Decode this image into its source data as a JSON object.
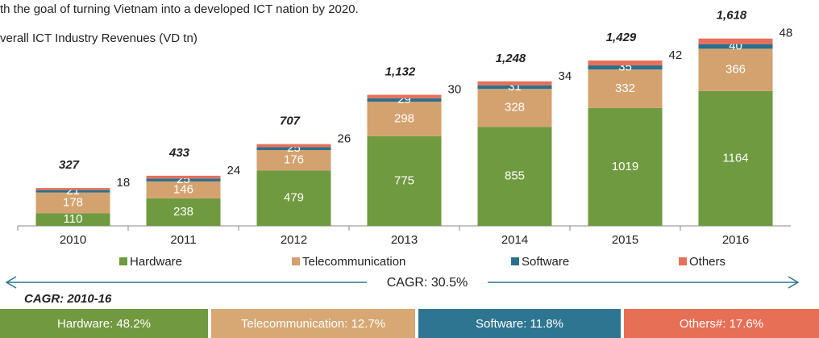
{
  "chart_data": {
    "type": "stacked_bar",
    "title": "th the goal of turning Vietnam into a developed ICT nation by 2020.",
    "subtitle": "verall ICT Industry Revenues (VD tn)",
    "categories": [
      "2010",
      "2011",
      "2012",
      "2013",
      "2014",
      "2015",
      "2016"
    ],
    "series": [
      {
        "name": "Hardware",
        "color": "#6f9a3f",
        "values": [
          110,
          238,
          479,
          775,
          855,
          1019,
          1164
        ]
      },
      {
        "name": "Telecommunication",
        "color": "#d4a26f",
        "values": [
          178,
          146,
          176,
          298,
          328,
          332,
          366
        ]
      },
      {
        "name": "Software",
        "color": "#2a6f8c",
        "values": [
          21,
          25,
          25,
          29,
          31,
          35,
          40
        ]
      },
      {
        "name": "Others",
        "color": "#e6705a",
        "values": [
          18,
          24,
          26,
          30,
          34,
          42,
          48
        ]
      }
    ],
    "totals": [
      "327",
      "433",
      "707",
      "1,132",
      "1,248",
      "1,429",
      "1,618"
    ],
    "ylim": [
      0,
      1700
    ],
    "cagr_overall": "CAGR: 30.5%",
    "cagr_heading": "CAGR: 2010-16",
    "cagr_boxes": [
      {
        "label": "Hardware: 48.2%",
        "color": "#71993f"
      },
      {
        "label": "Telecommunication: 12.7%",
        "color": "#d7a774"
      },
      {
        "label": "Software: 11.8%",
        "color": "#2e7591"
      },
      {
        "label": "Others#: 17.6%",
        "color": "#e66f55"
      }
    ]
  }
}
